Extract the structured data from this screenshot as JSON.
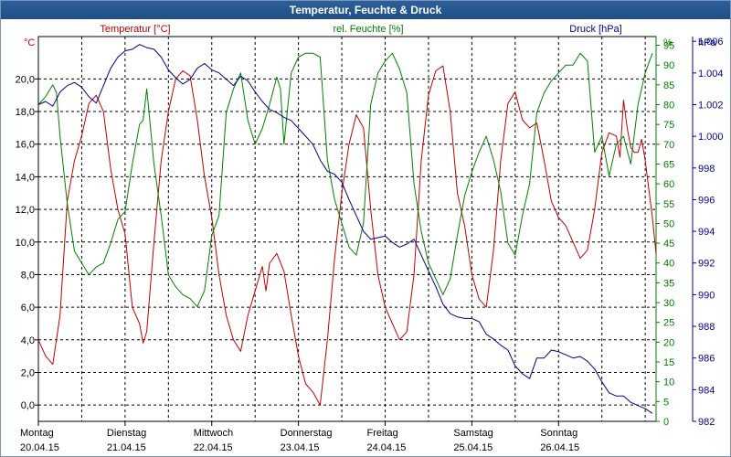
{
  "title": "Temperatur, Feuchte & Druck",
  "colors": {
    "temperature": "#c00000",
    "humidity": "#008000",
    "pressure": "#00008b",
    "grid": "#000000",
    "titlebar": "#2a5a95"
  },
  "chart_data": {
    "type": "line",
    "title": "Temperatur, Feuchte & Druck",
    "x_unit": "hours since 20.04.15 00:00",
    "x_range": [
      0,
      171
    ],
    "x_ticks": [
      {
        "x": 0,
        "line1": "Montag",
        "line2": "20.04.15"
      },
      {
        "x": 24,
        "line1": "Dienstag",
        "line2": "21.04.15"
      },
      {
        "x": 48,
        "line1": "Mittwoch",
        "line2": "22.04.15"
      },
      {
        "x": 72,
        "line1": "Donnerstag",
        "line2": "23.04.15"
      },
      {
        "x": 96,
        "line1": "Freitag",
        "line2": "24.04.15"
      },
      {
        "x": 120,
        "line1": "Samstag",
        "line2": "25.04.15"
      },
      {
        "x": 144,
        "line1": "Sonntag",
        "line2": "26.04.15"
      }
    ],
    "axes": {
      "temperature": {
        "label": "Temperatur [°C]",
        "unit": "°C",
        "range": [
          -1,
          22.6
        ],
        "ticks": [
          "0,0",
          "2,0",
          "4,0",
          "6,0",
          "8,0",
          "10,0",
          "12,0",
          "14,0",
          "16,0",
          "18,0",
          "20,0"
        ]
      },
      "humidity": {
        "label": "rel. Feuchte [%]",
        "unit": "%",
        "range": [
          0,
          97.2
        ],
        "ticks": [
          "0",
          "5",
          "10",
          "15",
          "20",
          "25",
          "30",
          "35",
          "40",
          "45",
          "50",
          "55",
          "60",
          "65",
          "70",
          "75",
          "80",
          "85",
          "90",
          "95"
        ]
      },
      "pressure": {
        "label": "Druck [hPa]",
        "unit": "hPa",
        "range": [
          982,
          1006.3
        ],
        "ticks": [
          "982",
          "984",
          "986",
          "988",
          "990",
          "992",
          "994",
          "996",
          "998",
          "1.000",
          "1.002",
          "1.004",
          "1.006"
        ]
      }
    },
    "grid": true,
    "series": [
      {
        "name": "Temperatur [°C]",
        "axis": "temperature",
        "points": [
          [
            0,
            4.0
          ],
          [
            2,
            3.0
          ],
          [
            4,
            2.5
          ],
          [
            6,
            5.5
          ],
          [
            8,
            12.5
          ],
          [
            10,
            15
          ],
          [
            12,
            16.5
          ],
          [
            14,
            18.5
          ],
          [
            16,
            19
          ],
          [
            18,
            18
          ],
          [
            20,
            14.5
          ],
          [
            22,
            12
          ],
          [
            24,
            10.5
          ],
          [
            26,
            6
          ],
          [
            28,
            5
          ],
          [
            29,
            3.8
          ],
          [
            30,
            4.5
          ],
          [
            32,
            10
          ],
          [
            34,
            15
          ],
          [
            36,
            18
          ],
          [
            38,
            20
          ],
          [
            40,
            20.5
          ],
          [
            42,
            20.2
          ],
          [
            44,
            17.5
          ],
          [
            46,
            14
          ],
          [
            48,
            11.5
          ],
          [
            50,
            8
          ],
          [
            52,
            5.5
          ],
          [
            54,
            4
          ],
          [
            56,
            3.3
          ],
          [
            58,
            5.5
          ],
          [
            60,
            7
          ],
          [
            62,
            8.5
          ],
          [
            63,
            7
          ],
          [
            64,
            8.7
          ],
          [
            66,
            9.3
          ],
          [
            68,
            8.2
          ],
          [
            70,
            5.5
          ],
          [
            72,
            3
          ],
          [
            74,
            1.3
          ],
          [
            76,
            0.8
          ],
          [
            78,
            0
          ],
          [
            80,
            4
          ],
          [
            82,
            9
          ],
          [
            84,
            13
          ],
          [
            86,
            16
          ],
          [
            88,
            17.8
          ],
          [
            90,
            17
          ],
          [
            92,
            12
          ],
          [
            94,
            8
          ],
          [
            96,
            6
          ],
          [
            98,
            5
          ],
          [
            100,
            4
          ],
          [
            102,
            4.5
          ],
          [
            104,
            8
          ],
          [
            106,
            15
          ],
          [
            108,
            19
          ],
          [
            110,
            20.5
          ],
          [
            112,
            20.8
          ],
          [
            114,
            18
          ],
          [
            116,
            13
          ],
          [
            118,
            11
          ],
          [
            120,
            8
          ],
          [
            122,
            6.5
          ],
          [
            124,
            6
          ],
          [
            126,
            9.5
          ],
          [
            128,
            15
          ],
          [
            130,
            18.5
          ],
          [
            132,
            19.2
          ],
          [
            134,
            17.5
          ],
          [
            136,
            17
          ],
          [
            138,
            17.3
          ],
          [
            140,
            15
          ],
          [
            142,
            12.5
          ],
          [
            144,
            11.5
          ],
          [
            146,
            11
          ],
          [
            148,
            10
          ],
          [
            150,
            9
          ],
          [
            152,
            9.5
          ],
          [
            154,
            12
          ],
          [
            156,
            15.5
          ],
          [
            158,
            16.7
          ],
          [
            160,
            16.5
          ],
          [
            161,
            15.2
          ],
          [
            162,
            18.7
          ],
          [
            163,
            17
          ],
          [
            164,
            15.8
          ],
          [
            165,
            15.5
          ],
          [
            166,
            15.5
          ],
          [
            167,
            16.3
          ],
          [
            168,
            15
          ],
          [
            170,
            11.5
          ],
          [
            171,
            9.3
          ]
        ]
      },
      {
        "name": "rel. Feuchte [%]",
        "axis": "humidity",
        "points": [
          [
            0,
            80
          ],
          [
            2,
            82
          ],
          [
            4,
            85
          ],
          [
            5,
            83
          ],
          [
            6,
            72
          ],
          [
            8,
            55
          ],
          [
            10,
            43
          ],
          [
            12,
            40
          ],
          [
            14,
            37
          ],
          [
            16,
            39
          ],
          [
            18,
            40
          ],
          [
            20,
            45
          ],
          [
            22,
            51
          ],
          [
            24,
            53
          ],
          [
            26,
            65
          ],
          [
            28,
            75
          ],
          [
            29,
            76
          ],
          [
            30,
            84
          ],
          [
            32,
            65
          ],
          [
            34,
            52
          ],
          [
            36,
            37
          ],
          [
            38,
            34
          ],
          [
            40,
            32
          ],
          [
            42,
            31
          ],
          [
            44,
            29
          ],
          [
            46,
            33
          ],
          [
            48,
            47
          ],
          [
            50,
            52
          ],
          [
            52,
            78
          ],
          [
            54,
            84
          ],
          [
            56,
            88
          ],
          [
            58,
            76
          ],
          [
            60,
            70
          ],
          [
            62,
            74
          ],
          [
            64,
            80
          ],
          [
            66,
            87
          ],
          [
            67,
            84
          ],
          [
            68,
            70
          ],
          [
            70,
            88
          ],
          [
            72,
            92
          ],
          [
            74,
            93
          ],
          [
            76,
            93
          ],
          [
            78,
            92
          ],
          [
            80,
            66
          ],
          [
            82,
            56
          ],
          [
            84,
            50
          ],
          [
            86,
            44
          ],
          [
            88,
            42
          ],
          [
            90,
            50
          ],
          [
            92,
            80
          ],
          [
            94,
            88
          ],
          [
            96,
            91
          ],
          [
            98,
            93
          ],
          [
            100,
            89
          ],
          [
            102,
            83
          ],
          [
            104,
            60
          ],
          [
            106,
            48
          ],
          [
            108,
            40
          ],
          [
            110,
            36
          ],
          [
            112,
            32
          ],
          [
            114,
            36
          ],
          [
            116,
            47
          ],
          [
            118,
            57
          ],
          [
            120,
            63
          ],
          [
            122,
            68
          ],
          [
            124,
            72
          ],
          [
            126,
            66
          ],
          [
            128,
            58
          ],
          [
            130,
            45
          ],
          [
            132,
            42
          ],
          [
            134,
            52
          ],
          [
            136,
            60
          ],
          [
            138,
            78
          ],
          [
            140,
            83
          ],
          [
            142,
            86
          ],
          [
            144,
            88
          ],
          [
            146,
            90
          ],
          [
            148,
            90
          ],
          [
            150,
            93
          ],
          [
            152,
            91
          ],
          [
            154,
            68
          ],
          [
            156,
            72
          ],
          [
            158,
            62
          ],
          [
            160,
            70
          ],
          [
            162,
            72
          ],
          [
            164,
            65
          ],
          [
            166,
            80
          ],
          [
            168,
            88
          ],
          [
            170,
            93
          ]
        ]
      },
      {
        "name": "Druck [hPa]",
        "axis": "pressure",
        "points": [
          [
            0,
            1002
          ],
          [
            2,
            1002.2
          ],
          [
            4,
            1001.9
          ],
          [
            6,
            1002.8
          ],
          [
            8,
            1003.2
          ],
          [
            10,
            1003.4
          ],
          [
            12,
            1003.1
          ],
          [
            14,
            1002.5
          ],
          [
            16,
            1002.1
          ],
          [
            18,
            1003.2
          ],
          [
            20,
            1004.3
          ],
          [
            22,
            1005
          ],
          [
            24,
            1005.4
          ],
          [
            26,
            1005.5
          ],
          [
            28,
            1005.8
          ],
          [
            30,
            1005.6
          ],
          [
            32,
            1005.5
          ],
          [
            34,
            1005
          ],
          [
            36,
            1004.2
          ],
          [
            38,
            1003.7
          ],
          [
            40,
            1003.3
          ],
          [
            42,
            1003.6
          ],
          [
            44,
            1004.3
          ],
          [
            46,
            1004.6
          ],
          [
            48,
            1004.2
          ],
          [
            50,
            1004
          ],
          [
            52,
            1003.6
          ],
          [
            54,
            1003.2
          ],
          [
            56,
            1003.8
          ],
          [
            58,
            1003.5
          ],
          [
            60,
            1002.8
          ],
          [
            62,
            1002.2
          ],
          [
            64,
            1001.7
          ],
          [
            66,
            1001.5
          ],
          [
            68,
            1001.2
          ],
          [
            70,
            1001
          ],
          [
            72,
            1000.5
          ],
          [
            74,
            1000
          ],
          [
            76,
            999.5
          ],
          [
            78,
            998.5
          ],
          [
            80,
            997.8
          ],
          [
            82,
            997.6
          ],
          [
            84,
            997.1
          ],
          [
            86,
            996
          ],
          [
            88,
            995
          ],
          [
            90,
            994
          ],
          [
            92,
            993.5
          ],
          [
            94,
            993.6
          ],
          [
            96,
            993.7
          ],
          [
            98,
            993.3
          ],
          [
            100,
            993
          ],
          [
            102,
            993.2
          ],
          [
            104,
            993.5
          ],
          [
            106,
            992.5
          ],
          [
            108,
            991.5
          ],
          [
            110,
            990.5
          ],
          [
            112,
            989.4
          ],
          [
            114,
            988.8
          ],
          [
            116,
            988.6
          ],
          [
            118,
            988.5
          ],
          [
            120,
            988.5
          ],
          [
            122,
            988.3
          ],
          [
            124,
            987.5
          ],
          [
            126,
            987.2
          ],
          [
            128,
            986.8
          ],
          [
            130,
            986.5
          ],
          [
            132,
            985.5
          ],
          [
            134,
            985
          ],
          [
            136,
            984.7
          ],
          [
            138,
            986
          ],
          [
            140,
            986
          ],
          [
            142,
            986.5
          ],
          [
            144,
            986.4
          ],
          [
            146,
            986.2
          ],
          [
            148,
            986
          ],
          [
            150,
            986.1
          ],
          [
            152,
            985.8
          ],
          [
            154,
            985.3
          ],
          [
            156,
            984.5
          ],
          [
            158,
            983.8
          ],
          [
            160,
            983.6
          ],
          [
            162,
            983.6
          ],
          [
            164,
            983.2
          ],
          [
            166,
            983.0
          ],
          [
            168,
            982.8
          ],
          [
            170,
            982.5
          ]
        ]
      }
    ]
  }
}
